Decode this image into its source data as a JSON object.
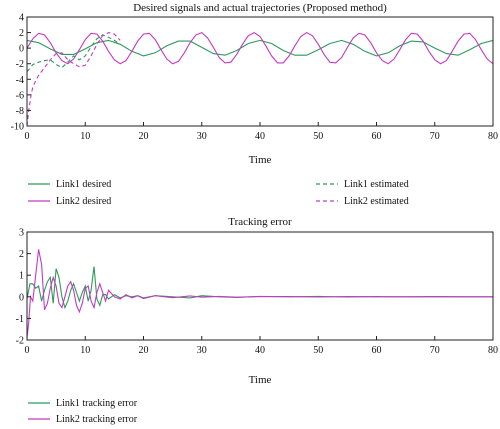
{
  "colors": {
    "link1": "#2e9a5a",
    "link2": "#c23bc2"
  },
  "chart_data": [
    {
      "type": "line",
      "title": "Desired signals and actual trajectories (Proposed method)",
      "xlabel": "Time",
      "ylabel": "",
      "xlim": [
        0,
        80
      ],
      "ylim": [
        -10,
        4
      ],
      "xticks": [
        "0",
        "10",
        "20",
        "30",
        "40",
        "50",
        "60",
        "70",
        "80"
      ],
      "yticks": [
        "4",
        "2",
        "0",
        "-2",
        "-4",
        "-6",
        "-8",
        "-10"
      ],
      "grid": false,
      "legend_position": "below",
      "legend": [
        "Link1 desired",
        "Link2 desired",
        "Link1 estimated",
        "Link2 estimated"
      ],
      "series": [
        {
          "name": "Link1 desired",
          "style": "solid",
          "color": "#2e9a5a",
          "x": [
            0,
            2,
            4,
            6,
            8,
            10,
            12,
            14,
            16,
            18,
            20,
            22,
            24,
            26,
            28,
            30,
            32,
            34,
            36,
            38,
            40,
            42,
            44,
            46,
            48,
            50,
            52,
            54,
            56,
            58,
            60,
            62,
            64,
            66,
            68,
            70,
            72,
            74,
            76,
            78,
            80
          ],
          "y": [
            1.0,
            0.7,
            -0.1,
            -0.8,
            -0.8,
            -0.1,
            0.7,
            1.0,
            0.5,
            -0.4,
            -1.0,
            -0.6,
            0.3,
            0.9,
            0.9,
            0.1,
            -0.7,
            -0.9,
            -0.3,
            0.6,
            1.0,
            0.6,
            -0.3,
            -0.9,
            -0.9,
            -0.2,
            0.6,
            1.0,
            0.5,
            -0.4,
            -1.0,
            -0.6,
            0.3,
            0.9,
            0.8,
            0.0,
            -0.7,
            -0.9,
            -0.2,
            0.6,
            1.0
          ]
        },
        {
          "name": "Link2 desired",
          "style": "solid",
          "color": "#c23bc2",
          "x": [
            0,
            1,
            2,
            3,
            4,
            5,
            6,
            7,
            8,
            9,
            10,
            11,
            12,
            13,
            14,
            15,
            16,
            17,
            18,
            19,
            20,
            21,
            22,
            23,
            24,
            25,
            26,
            27,
            28,
            29,
            30,
            31,
            32,
            33,
            34,
            35,
            36,
            37,
            38,
            39,
            40,
            41,
            42,
            43,
            44,
            45,
            46,
            47,
            48,
            49,
            50,
            51,
            52,
            53,
            54,
            55,
            56,
            57,
            58,
            59,
            60,
            61,
            62,
            63,
            64,
            65,
            66,
            67,
            68,
            69,
            70,
            71,
            72,
            73,
            74,
            75,
            76,
            77,
            78,
            79,
            80
          ],
          "y": [
            0.0,
            1.2,
            1.9,
            1.7,
            0.7,
            -0.6,
            -1.6,
            -2.0,
            -1.4,
            -0.2,
            1.1,
            1.9,
            1.8,
            0.9,
            -0.4,
            -1.5,
            -2.0,
            -1.6,
            -0.4,
            0.9,
            1.8,
            1.9,
            1.1,
            -0.2,
            -1.4,
            -2.0,
            -1.7,
            -0.6,
            0.7,
            1.7,
            2.0,
            1.3,
            0.1,
            -1.2,
            -1.9,
            -1.8,
            -0.8,
            0.5,
            1.6,
            2.0,
            1.5,
            0.3,
            -1.0,
            -1.9,
            -1.9,
            -1.0,
            0.3,
            1.5,
            2.0,
            1.6,
            0.5,
            -0.8,
            -1.8,
            -1.9,
            -1.2,
            0.1,
            1.3,
            1.9,
            1.7,
            0.7,
            -0.6,
            -1.6,
            -2.0,
            -1.4,
            -0.2,
            1.1,
            1.9,
            1.8,
            0.9,
            -0.4,
            -1.5,
            -2.0,
            -1.6,
            -0.4,
            0.9,
            1.8,
            1.9,
            1.1,
            -0.2,
            -1.4,
            -2.0
          ]
        },
        {
          "name": "Link1 estimated",
          "style": "dashed",
          "color": "#2e9a5a",
          "x": [
            0,
            0.5,
            1,
            2,
            3,
            4,
            5,
            6,
            7,
            8,
            9,
            10,
            11,
            12,
            13,
            14,
            15,
            16
          ],
          "y": [
            -3.0,
            -2.6,
            -2.1,
            -1.8,
            -1.6,
            -1.5,
            -2.1,
            -2.5,
            -1.8,
            -1.0,
            -1.5,
            -1.0,
            0.2,
            1.2,
            1.7,
            1.4,
            1.0,
            0.5
          ]
        },
        {
          "name": "Link2 estimated",
          "style": "dashed",
          "color": "#c23bc2",
          "x": [
            0,
            0.3,
            0.7,
            1,
            1.5,
            2,
            3,
            4,
            5,
            6,
            7,
            8,
            9,
            10,
            11,
            12,
            13,
            14,
            15,
            16
          ],
          "y": [
            -10.0,
            -8.0,
            -6.0,
            -5.0,
            -4.2,
            -3.5,
            -2.5,
            -1.5,
            -0.7,
            -0.6,
            -1.5,
            -2.0,
            -2.4,
            -2.2,
            -1.0,
            0.5,
            1.6,
            2.0,
            1.8,
            1.0
          ]
        }
      ]
    },
    {
      "type": "line",
      "title": "Tracking error",
      "xlabel": "Time",
      "ylabel": "",
      "xlim": [
        0,
        80
      ],
      "ylim": [
        -2,
        3
      ],
      "xticks": [
        "0",
        "10",
        "20",
        "30",
        "40",
        "50",
        "60",
        "70",
        "80"
      ],
      "yticks": [
        "3",
        "2",
        "1",
        "0",
        "-1",
        "-2"
      ],
      "grid": false,
      "legend_position": "below",
      "legend": [
        "Link1 tracking error",
        "Link2 tracking error"
      ],
      "series": [
        {
          "name": "Link1 tracking error",
          "style": "solid",
          "color": "#2e9a5a",
          "x": [
            0,
            0.5,
            1,
            1.5,
            2,
            2.5,
            3,
            3.5,
            4,
            4.5,
            5,
            5.5,
            6,
            6.5,
            7,
            7.5,
            8,
            8.5,
            9,
            9.5,
            10,
            10.5,
            11,
            11.5,
            12,
            12.5,
            13,
            13.5,
            14,
            15,
            16,
            17,
            18,
            19,
            20,
            22,
            25,
            28,
            30,
            33,
            36,
            40,
            45,
            50,
            55,
            60,
            65,
            70,
            75,
            80
          ],
          "y": [
            -0.1,
            0.6,
            0.6,
            0.4,
            0.5,
            -0.2,
            0.3,
            0.7,
            0.9,
            -0.3,
            1.3,
            0.9,
            0.0,
            -0.5,
            -0.2,
            0.3,
            0.6,
            0.2,
            -0.2,
            0.2,
            0.5,
            -0.2,
            0.3,
            1.4,
            -0.1,
            -0.4,
            0.1,
            0.1,
            -0.1,
            0.1,
            -0.05,
            0.05,
            0.0,
            0.05,
            -0.05,
            0.05,
            0.0,
            -0.05,
            0.05,
            0.0,
            -0.03,
            0.02,
            0.0,
            0.02,
            -0.01,
            0.01,
            0.0,
            0.01,
            0.0,
            0.0
          ]
        },
        {
          "name": "Link2 tracking error",
          "style": "solid",
          "color": "#c23bc2",
          "x": [
            0,
            0.3,
            0.6,
            1,
            1.5,
            2,
            2.5,
            3,
            3.5,
            4,
            4.5,
            5,
            5.5,
            6,
            6.5,
            7,
            7.5,
            8,
            8.5,
            9,
            9.5,
            10,
            10.5,
            11,
            11.5,
            12,
            12.5,
            13,
            13.5,
            14,
            15,
            16,
            17,
            18,
            19,
            20,
            22,
            25,
            28,
            30,
            33,
            36,
            40,
            45,
            50,
            55,
            60,
            65,
            70,
            75,
            80
          ],
          "y": [
            -1.9,
            -1.2,
            0.0,
            -0.2,
            1.0,
            2.2,
            1.5,
            -0.6,
            -0.3,
            0.4,
            0.9,
            0.5,
            -0.3,
            -0.5,
            0.0,
            0.5,
            0.7,
            0.3,
            -0.4,
            -0.7,
            -0.3,
            0.4,
            0.5,
            -0.2,
            -0.5,
            0.2,
            0.6,
            0.2,
            -0.2,
            0.3,
            0.0,
            -0.1,
            0.1,
            -0.05,
            0.05,
            -0.08,
            0.05,
            -0.04,
            0.04,
            -0.02,
            0.02,
            -0.02,
            0.01,
            0.01,
            -0.01,
            0.01,
            0.0,
            0.0,
            0.0,
            0.0,
            0.0
          ]
        }
      ]
    }
  ]
}
